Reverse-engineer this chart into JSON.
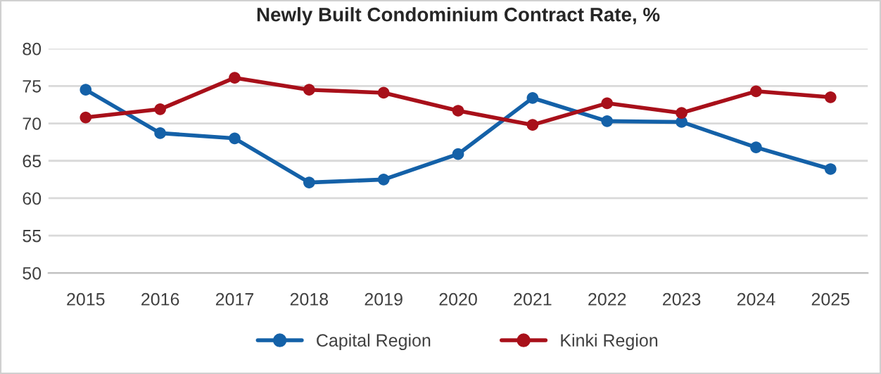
{
  "chart_data": {
    "type": "line",
    "title": "Newly Built Condominium Contract Rate, %",
    "categories": [
      "2015",
      "2016",
      "2017",
      "2018",
      "2019",
      "2020",
      "2021",
      "2022",
      "2023",
      "2024",
      "2025"
    ],
    "series": [
      {
        "name": "Capital Region",
        "color": "#1461a8",
        "values": [
          74.5,
          68.7,
          68.0,
          62.1,
          62.5,
          65.9,
          73.4,
          70.3,
          70.2,
          66.8,
          63.9
        ]
      },
      {
        "name": "Kinki Region",
        "color": "#a8101a",
        "values": [
          70.8,
          71.9,
          76.1,
          74.5,
          74.1,
          71.7,
          69.8,
          72.7,
          71.4,
          74.3,
          73.5
        ]
      }
    ],
    "ylim": [
      50,
      80
    ],
    "yticks": [
      50,
      55,
      60,
      65,
      70,
      75,
      80
    ],
    "grid": "y",
    "legend": "bottom",
    "marker": "circle",
    "line_style": "solid"
  }
}
